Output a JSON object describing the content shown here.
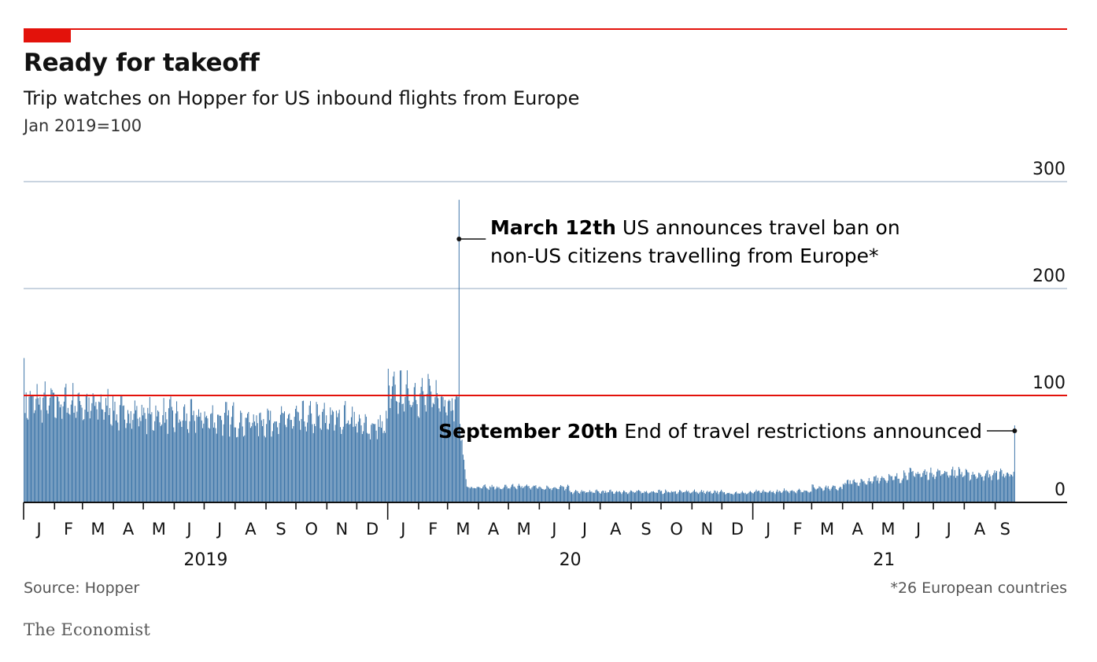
{
  "header": {
    "title": "Ready for takeoff",
    "subtitle": "Trip watches on Hopper for US inbound flights from Europe",
    "unit": "Jan 2019=100"
  },
  "footer": {
    "source": "Source: Hopper",
    "footnote": "*26 European countries",
    "logo": "The Economist"
  },
  "colors": {
    "accent": "#e3120b",
    "bars": "#2e6aa1",
    "gridline": "#b7c6d6",
    "reference_line": "#e3120b"
  },
  "chart_data": {
    "type": "bar",
    "title": "Ready for takeoff",
    "subtitle": "Trip watches on Hopper for US inbound flights from Europe",
    "ylabel": "Jan 2019=100",
    "ylim": [
      0,
      300
    ],
    "yticks": [
      "0",
      "100",
      "200",
      "300"
    ],
    "reference_value": 100,
    "grid": true,
    "frequency": "daily",
    "start": "2019-01-01",
    "end": "2021-09-20",
    "month_labels": [
      "J",
      "F",
      "M",
      "A",
      "M",
      "J",
      "J",
      "A",
      "S",
      "O",
      "N",
      "D",
      "J",
      "F",
      "M",
      "A",
      "M",
      "J",
      "J",
      "A",
      "S",
      "O",
      "N",
      "D",
      "J",
      "F",
      "M",
      "A",
      "M",
      "J",
      "J",
      "A",
      "S"
    ],
    "year_labels": [
      "2019",
      "20",
      "21"
    ],
    "monthly_levels": [
      {
        "month": "2019-01",
        "value": 95
      },
      {
        "month": "2019-02",
        "value": 94
      },
      {
        "month": "2019-03",
        "value": 91
      },
      {
        "month": "2019-04",
        "value": 84
      },
      {
        "month": "2019-05",
        "value": 82
      },
      {
        "month": "2019-06",
        "value": 80
      },
      {
        "month": "2019-07",
        "value": 79
      },
      {
        "month": "2019-08",
        "value": 77
      },
      {
        "month": "2019-09",
        "value": 78
      },
      {
        "month": "2019-10",
        "value": 79
      },
      {
        "month": "2019-11",
        "value": 80
      },
      {
        "month": "2019-12",
        "value": 72
      },
      {
        "month": "2020-01",
        "value": 103
      },
      {
        "month": "2020-02",
        "value": 100
      },
      {
        "month": "2020-03",
        "value": 15
      },
      {
        "month": "2020-04",
        "value": 14
      },
      {
        "month": "2020-05",
        "value": 15
      },
      {
        "month": "2020-06",
        "value": 14
      },
      {
        "month": "2020-07",
        "value": 10
      },
      {
        "month": "2020-08",
        "value": 10
      },
      {
        "month": "2020-09",
        "value": 10
      },
      {
        "month": "2020-10",
        "value": 10
      },
      {
        "month": "2020-11",
        "value": 10
      },
      {
        "month": "2020-12",
        "value": 9
      },
      {
        "month": "2021-01",
        "value": 10
      },
      {
        "month": "2021-02",
        "value": 11
      },
      {
        "month": "2021-03",
        "value": 14
      },
      {
        "month": "2021-04",
        "value": 19
      },
      {
        "month": "2021-05",
        "value": 23
      },
      {
        "month": "2021-06",
        "value": 27
      },
      {
        "month": "2021-07",
        "value": 28
      },
      {
        "month": "2021-08",
        "value": 26
      },
      {
        "month": "2021-09",
        "value": 27
      }
    ],
    "peaks": [
      {
        "date": "2019-01-01",
        "value": 135
      },
      {
        "date": "2020-01-01",
        "value": 125
      },
      {
        "date": "2020-03-12",
        "value": 283
      },
      {
        "date": "2021-09-20",
        "value": 72
      }
    ],
    "annotations": [
      {
        "date": "2020-03-12",
        "label_bold": "March 12th",
        "label": "US announces travel ban on",
        "label_line2": "non-US citizens travelling from Europe*"
      },
      {
        "date": "2021-09-20",
        "label_bold": "September 20th",
        "label": "End of travel restrictions announced"
      }
    ]
  }
}
